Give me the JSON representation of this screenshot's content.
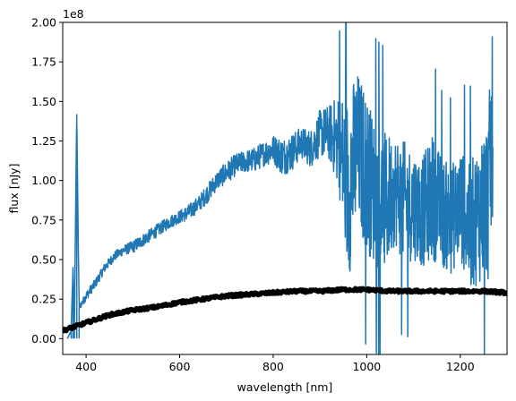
{
  "chart_data": {
    "type": "line",
    "title": "",
    "xlabel": "wavelength [nm]",
    "ylabel": "flux [nJy]",
    "y_offset_text": "1e8",
    "xlim": [
      350,
      1300
    ],
    "ylim": [
      -0.1,
      2.0
    ],
    "y_units_multiplier": 100000000,
    "grid": false,
    "legend": "none",
    "x_ticks": [
      400,
      600,
      800,
      1000,
      1200
    ],
    "x_tick_labels": [
      "400",
      "600",
      "800",
      "1000",
      "1200"
    ],
    "y_ticks": [
      0.0,
      0.25,
      0.5,
      0.75,
      1.0,
      1.25,
      1.5,
      1.75,
      2.0
    ],
    "y_tick_labels": [
      "0.00",
      "0.25",
      "0.50",
      "0.75",
      "1.00",
      "1.25",
      "1.50",
      "1.75",
      "2.00"
    ],
    "series": [
      {
        "color": "#1f77b4",
        "style": "noisy-line",
        "x": [
          360,
          368,
          372,
          375,
          380,
          385,
          390,
          400,
          420,
          440,
          460,
          480,
          500,
          520,
          540,
          560,
          580,
          600,
          620,
          640,
          660,
          680,
          700,
          720,
          740,
          760,
          780,
          800,
          820,
          840,
          860,
          880,
          900,
          920,
          940,
          960,
          980,
          1000,
          1020,
          1040,
          1060,
          1080,
          1100,
          1120,
          1140,
          1160,
          1180,
          1200,
          1220,
          1240,
          1260,
          1270
        ],
        "y": [
          0.0,
          0.05,
          0.45,
          0.1,
          1.42,
          0.2,
          0.22,
          0.27,
          0.35,
          0.45,
          0.52,
          0.56,
          0.58,
          0.62,
          0.66,
          0.7,
          0.74,
          0.77,
          0.8,
          0.85,
          0.92,
          1.0,
          1.05,
          1.1,
          1.12,
          1.13,
          1.17,
          1.2,
          1.15,
          1.18,
          1.24,
          1.2,
          1.3,
          1.3,
          1.25,
          0.95,
          1.2,
          1.05,
          0.9,
          0.85,
          0.95,
          0.85,
          0.85,
          0.8,
          0.9,
          0.8,
          0.75,
          0.85,
          0.7,
          0.8,
          0.9,
          1.4
        ],
        "noise": [
          0.0,
          0.0,
          0.0,
          0.0,
          0.0,
          0.02,
          0.02,
          0.03,
          0.03,
          0.03,
          0.03,
          0.03,
          0.04,
          0.04,
          0.04,
          0.04,
          0.04,
          0.04,
          0.05,
          0.05,
          0.06,
          0.06,
          0.07,
          0.07,
          0.07,
          0.08,
          0.08,
          0.09,
          0.12,
          0.12,
          0.1,
          0.12,
          0.15,
          0.18,
          0.3,
          0.6,
          0.5,
          0.5,
          0.45,
          0.45,
          0.35,
          0.4,
          0.35,
          0.35,
          0.4,
          0.35,
          0.35,
          0.35,
          0.4,
          0.45,
          0.55,
          0.6
        ]
      },
      {
        "color": "#000000",
        "style": "thick-line",
        "x": [
          350,
          380,
          400,
          450,
          500,
          550,
          600,
          650,
          700,
          750,
          800,
          850,
          900,
          950,
          1000,
          1050,
          1100,
          1150,
          1200,
          1250,
          1300
        ],
        "y": [
          0.05,
          0.08,
          0.1,
          0.15,
          0.18,
          0.2,
          0.23,
          0.25,
          0.27,
          0.28,
          0.29,
          0.3,
          0.3,
          0.31,
          0.31,
          0.3,
          0.3,
          0.3,
          0.3,
          0.3,
          0.29
        ]
      }
    ]
  }
}
